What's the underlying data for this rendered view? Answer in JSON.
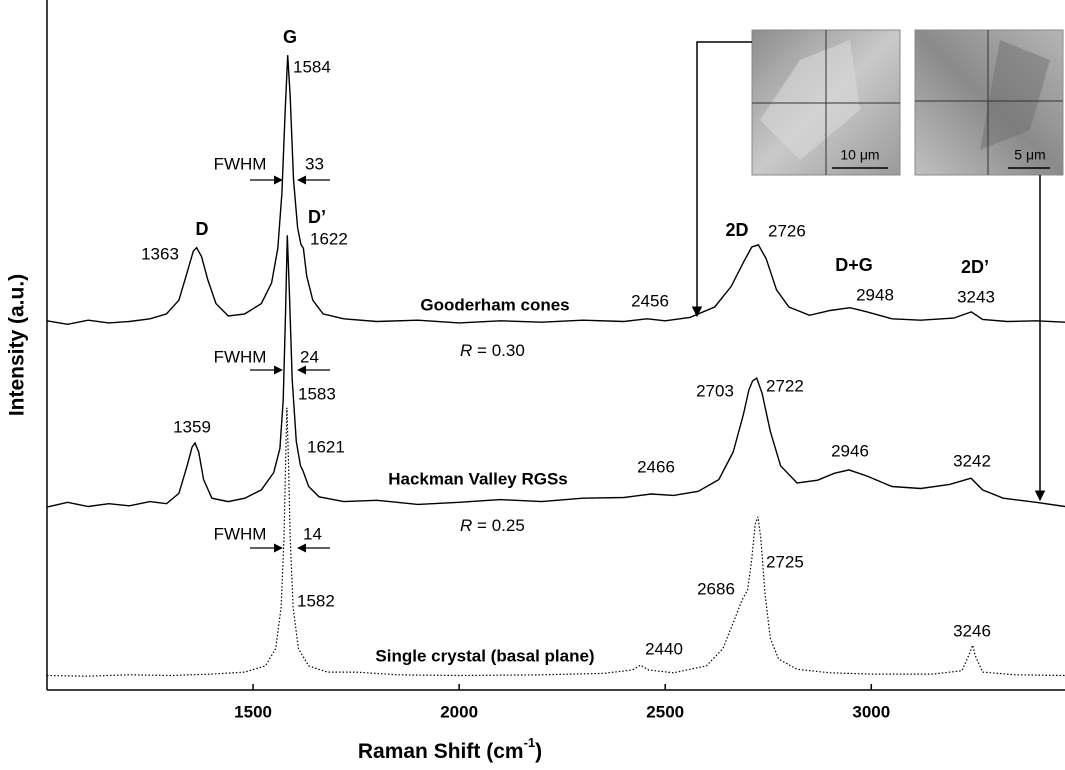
{
  "chart_data": {
    "type": "line",
    "x_label": "Raman Shift (cm",
    "x_label_sup": "-1",
    "x_label_end": ")",
    "y_label": "Intensity (a.u.)",
    "xlim": [
      1000,
      3470
    ],
    "xticks": [
      1500,
      2000,
      2500,
      3000
    ],
    "ylim": [
      0,
      100
    ],
    "band_labels": [
      "G",
      "D",
      "D’",
      "2D",
      "D+G",
      "2D’"
    ],
    "fwhm_label": "FWHM",
    "r_name": "R",
    "r_sign": "=",
    "insets": [
      {
        "scale_label": "10 μm"
      },
      {
        "scale_label": "5 μm"
      }
    ],
    "series": [
      {
        "name": "Gooderham cones",
        "color": "#000000",
        "line_style": "solid",
        "peaks": [
          1363,
          1584,
          1622,
          2456,
          2726,
          2948,
          3243
        ],
        "fwhm": 33,
        "r": {
          "value": 0.3,
          "label": "0.30"
        },
        "x": [
          1000,
          1050,
          1100,
          1150,
          1200,
          1250,
          1290,
          1320,
          1340,
          1355,
          1363,
          1375,
          1390,
          1410,
          1440,
          1480,
          1520,
          1545,
          1560,
          1570,
          1578,
          1584,
          1590,
          1598,
          1608,
          1616,
          1622,
          1630,
          1645,
          1670,
          1720,
          1800,
          1900,
          2000,
          2100,
          2200,
          2300,
          2400,
          2456,
          2500,
          2560,
          2620,
          2660,
          2690,
          2710,
          2726,
          2745,
          2770,
          2800,
          2850,
          2900,
          2948,
          2990,
          3050,
          3120,
          3200,
          3243,
          3270,
          3330,
          3400,
          3470
        ],
        "values": [
          53.5,
          53.0,
          53.6,
          53.2,
          53.4,
          53.8,
          54.5,
          56.5,
          60.5,
          63.6,
          64.1,
          62.8,
          59.5,
          56.0,
          54.2,
          54.5,
          56.0,
          59.0,
          64.0,
          72.0,
          84.0,
          92.0,
          86.0,
          74.0,
          67.0,
          64.6,
          64.0,
          60.0,
          56.5,
          54.5,
          53.8,
          53.4,
          53.6,
          53.2,
          53.5,
          53.3,
          53.6,
          53.4,
          53.8,
          53.5,
          54.0,
          55.5,
          58.5,
          62.0,
          64.2,
          64.5,
          62.5,
          58.0,
          55.5,
          54.3,
          55.0,
          55.4,
          54.8,
          53.8,
          53.6,
          53.9,
          54.8,
          53.7,
          53.4,
          53.5,
          53.3
        ]
      },
      {
        "name": "Hackman Valley RGSs",
        "color": "#000000",
        "line_style": "solid",
        "peaks": [
          1359,
          1583,
          1621,
          2466,
          2703,
          2722,
          2946,
          3242
        ],
        "fwhm": 24,
        "r": {
          "value": 0.25,
          "label": "0.25"
        },
        "x": [
          1000,
          1050,
          1100,
          1150,
          1200,
          1250,
          1290,
          1320,
          1340,
          1352,
          1359,
          1368,
          1380,
          1400,
          1440,
          1480,
          1520,
          1550,
          1565,
          1573,
          1579,
          1583,
          1588,
          1595,
          1605,
          1615,
          1621,
          1635,
          1660,
          1720,
          1800,
          1900,
          2000,
          2100,
          2200,
          2300,
          2400,
          2466,
          2520,
          2580,
          2630,
          2665,
          2690,
          2703,
          2712,
          2722,
          2735,
          2755,
          2780,
          2820,
          2870,
          2910,
          2946,
          2990,
          3050,
          3120,
          3190,
          3242,
          3270,
          3320,
          3400,
          3470
        ],
        "values": [
          26.5,
          27.2,
          26.6,
          27.0,
          26.7,
          27.3,
          27.0,
          28.5,
          32.5,
          35.2,
          35.8,
          34.5,
          30.5,
          27.8,
          27.3,
          27.8,
          29.0,
          31.5,
          35.0,
          42.0,
          55.0,
          65.9,
          58.0,
          45.0,
          36.0,
          32.5,
          31.8,
          29.5,
          28.0,
          27.3,
          27.5,
          26.9,
          27.2,
          27.6,
          27.3,
          27.8,
          27.9,
          28.4,
          28.2,
          28.8,
          30.5,
          34.5,
          40.0,
          43.5,
          44.8,
          45.2,
          43.0,
          37.5,
          32.5,
          30.0,
          30.4,
          31.4,
          31.9,
          31.0,
          29.5,
          29.2,
          29.8,
          30.7,
          29.0,
          27.8,
          27.2,
          26.6
        ]
      },
      {
        "name": "Single crystal (basal plane)",
        "color": "#000000",
        "line_style": "dotted",
        "peaks": [
          1582,
          2440,
          2686,
          2725,
          3246
        ],
        "fwhm": 14,
        "x": [
          1000,
          1100,
          1200,
          1300,
          1400,
          1480,
          1530,
          1555,
          1568,
          1575,
          1579,
          1582,
          1586,
          1590,
          1597,
          1610,
          1635,
          1680,
          1750,
          1850,
          2000,
          2200,
          2350,
          2420,
          2440,
          2460,
          2520,
          2600,
          2640,
          2670,
          2686,
          2700,
          2710,
          2718,
          2725,
          2732,
          2742,
          2755,
          2775,
          2820,
          2900,
          3000,
          3150,
          3220,
          3240,
          3246,
          3252,
          3270,
          3350,
          3470
        ],
        "values": [
          2.1,
          2.0,
          2.2,
          2.1,
          2.3,
          2.6,
          3.5,
          6.0,
          12.0,
          22.0,
          33.0,
          40.9,
          33.0,
          22.0,
          12.0,
          6.0,
          3.5,
          2.6,
          2.6,
          2.2,
          2.1,
          2.2,
          2.4,
          2.9,
          3.6,
          2.9,
          2.5,
          3.5,
          6.0,
          10.5,
          13.0,
          14.5,
          19.0,
          24.0,
          25.1,
          22.0,
          14.0,
          7.5,
          4.5,
          3.0,
          2.5,
          2.3,
          2.3,
          2.8,
          5.5,
          6.5,
          5.0,
          2.6,
          2.2,
          2.1
        ]
      }
    ]
  }
}
